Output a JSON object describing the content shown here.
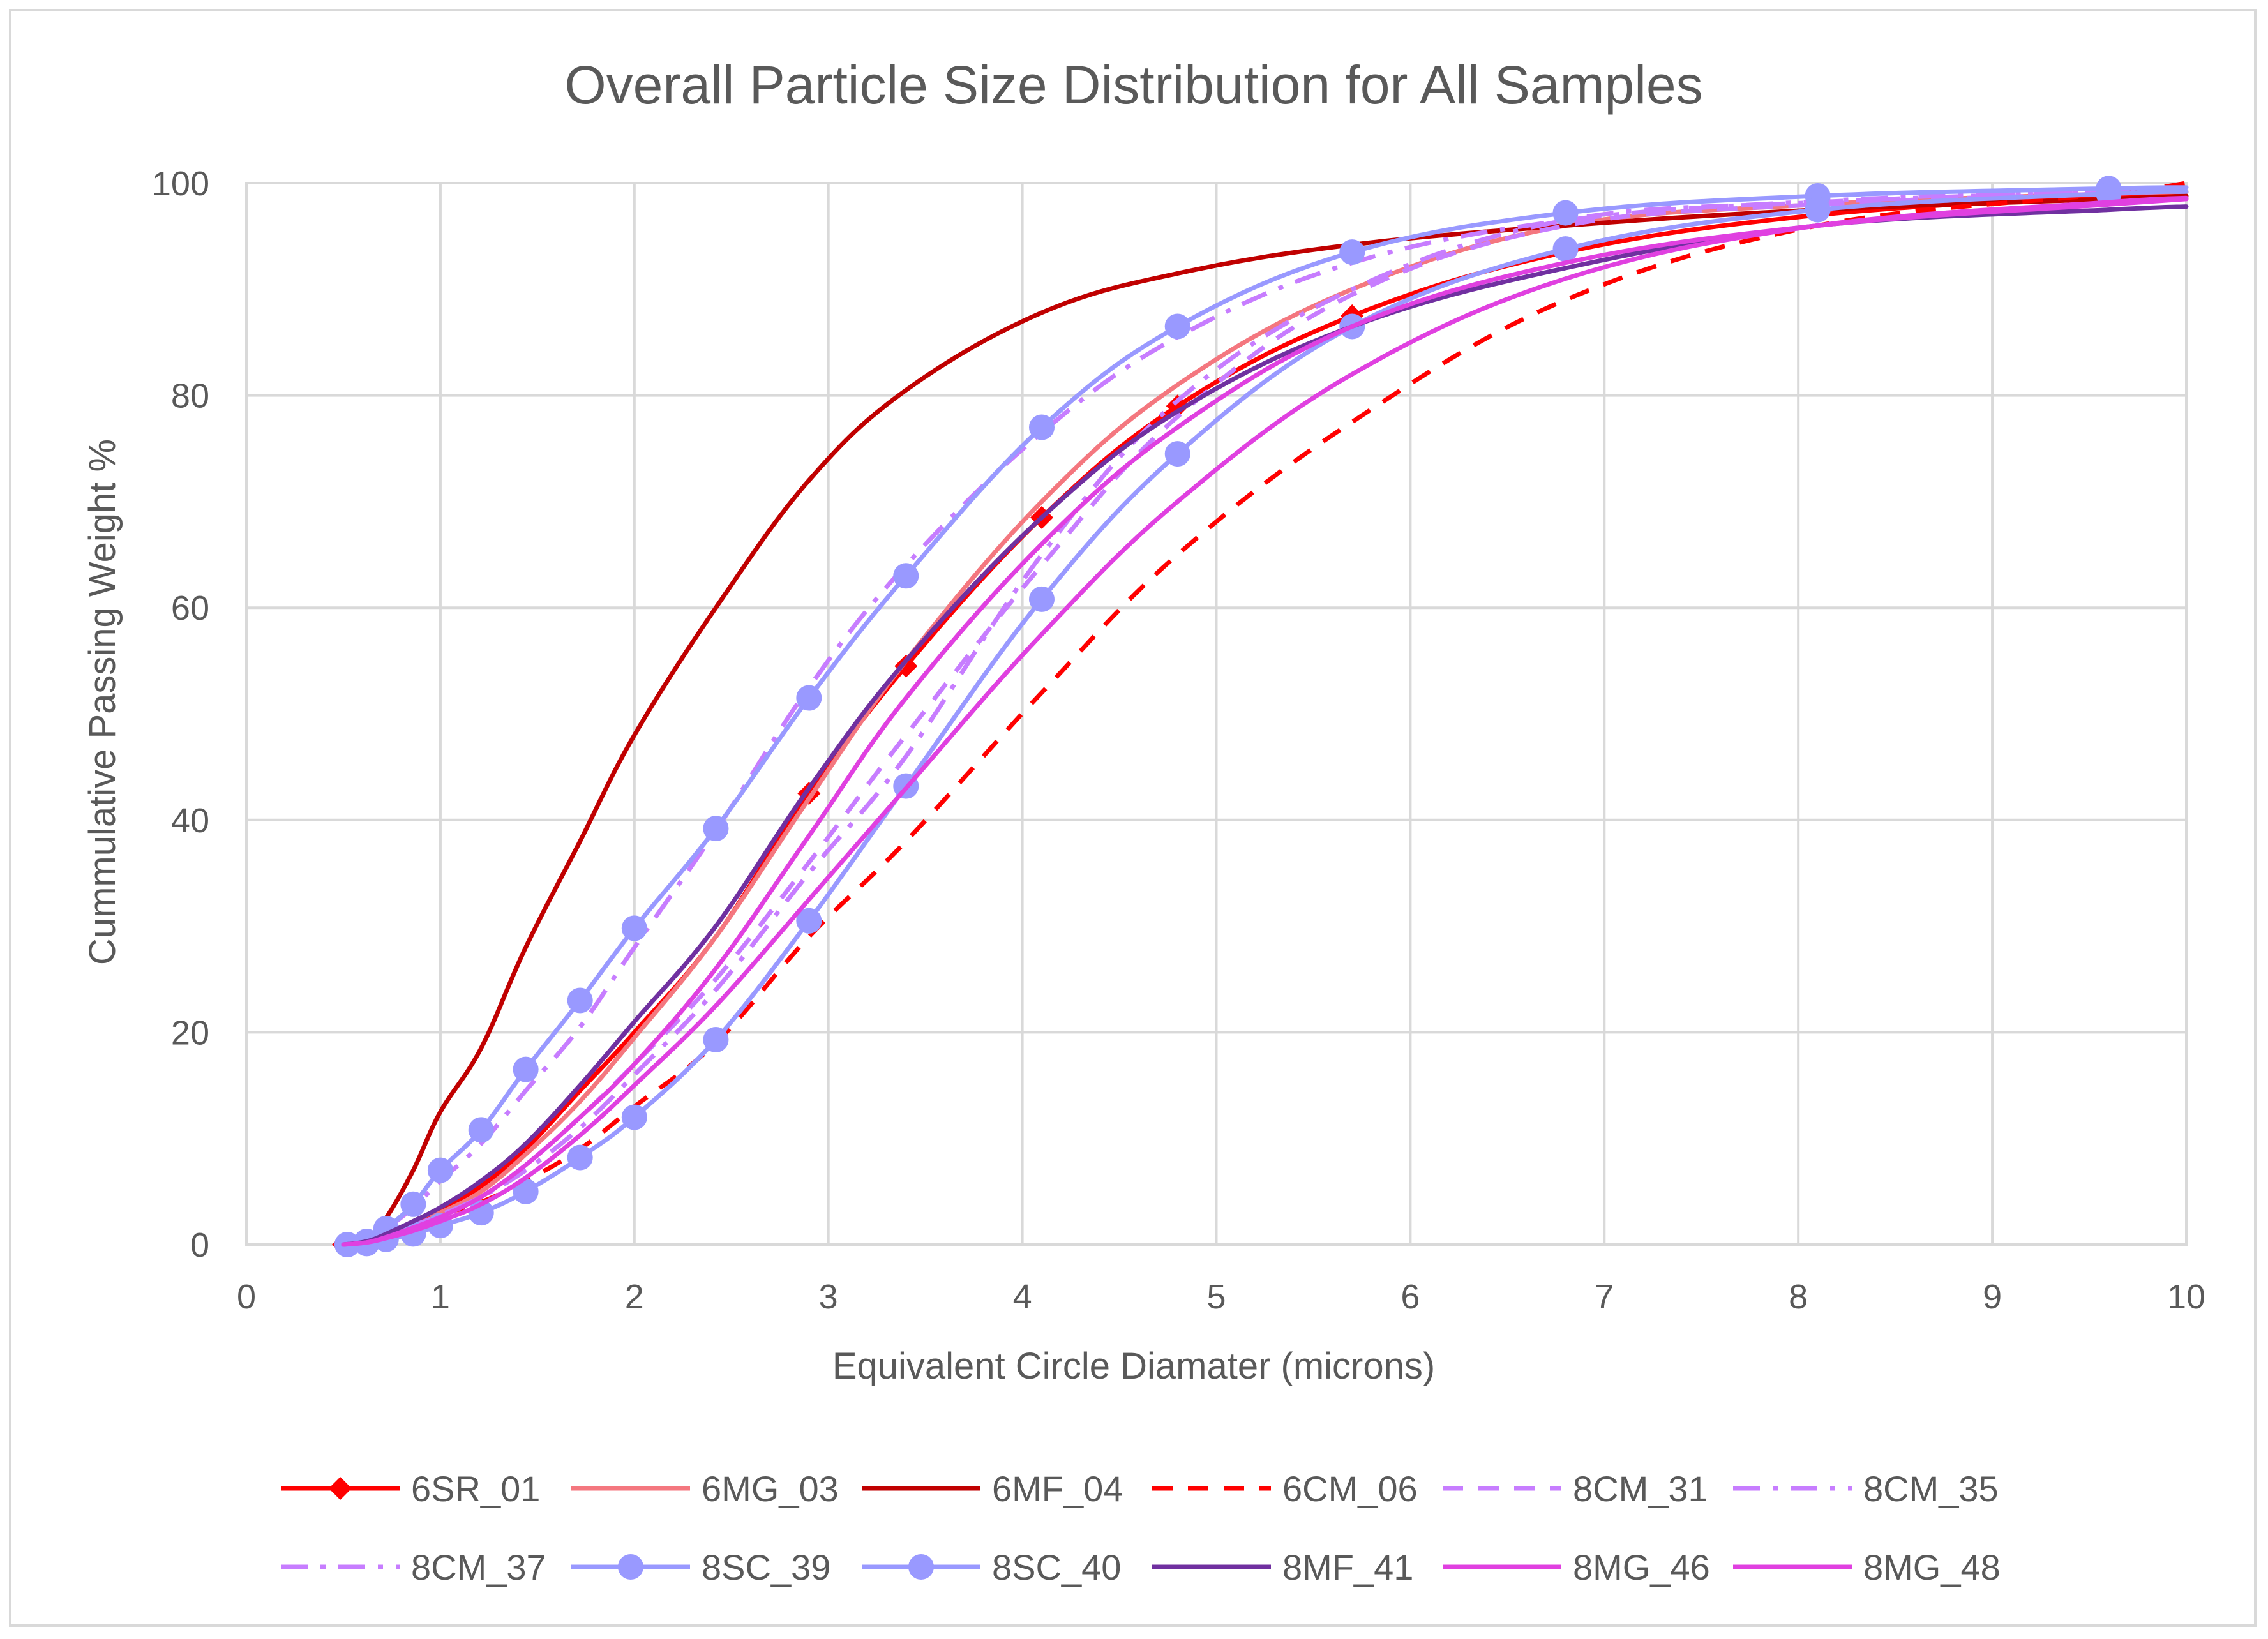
{
  "chart_data": {
    "type": "line",
    "title": "Overall Particle Size Distribution for All Samples",
    "xlabel": "Equivalent Circle Diamater (microns)",
    "ylabel": "Cummulative Passing Weight %",
    "xlim": [
      0,
      10
    ],
    "ylim": [
      0,
      100
    ],
    "xticks": [
      "0",
      "1",
      "2",
      "3",
      "4",
      "5",
      "6",
      "7",
      "8",
      "9",
      "10"
    ],
    "yticks": [
      "0",
      "20",
      "40",
      "60",
      "80",
      "100"
    ],
    "grid": true,
    "legend_position": "bottom",
    "series": [
      {
        "name": "6SR_01",
        "color": "#ff0000",
        "dash": "solid",
        "marker": "diamond",
        "marked": [
          0.5,
          2.9,
          3.4,
          4.1,
          4.8,
          5.7
        ],
        "x": [
          0.5,
          0.62,
          0.72,
          0.86,
          1.0,
          1.21,
          1.44,
          1.72,
          2.0,
          2.42,
          2.9,
          3.4,
          4.1,
          4.8,
          5.7,
          6.8,
          8.1,
          9.6,
          10.0
        ],
        "y": [
          0,
          0.3,
          1.0,
          2.0,
          3.2,
          5.5,
          9.0,
          14.5,
          20.0,
          29.0,
          42.5,
          54.5,
          68.5,
          79.0,
          87.5,
          93.5,
          97.0,
          98.8,
          99.2
        ]
      },
      {
        "name": "6MG_03",
        "color": "#f4777f",
        "dash": "solid",
        "marker": "none",
        "x": [
          0.5,
          0.62,
          0.72,
          0.86,
          1.0,
          1.21,
          1.44,
          1.72,
          2.0,
          2.42,
          2.9,
          3.4,
          4.1,
          4.8,
          5.7,
          6.8,
          8.1,
          9.6,
          10.0
        ],
        "y": [
          0,
          0.3,
          1.0,
          2.0,
          3.0,
          5.0,
          8.5,
          13.5,
          19.5,
          29.0,
          42.0,
          55.0,
          70.0,
          81.0,
          90.0,
          96.0,
          98.0,
          99.0,
          99.2
        ]
      },
      {
        "name": "6MF_04",
        "color": "#c00000",
        "dash": "solid",
        "marker": "none",
        "x": [
          0.5,
          0.62,
          0.72,
          0.86,
          1.0,
          1.21,
          1.44,
          1.72,
          2.0,
          2.42,
          2.9,
          3.4,
          4.1,
          4.8,
          5.7,
          6.8,
          8.1,
          9.6,
          10.0
        ],
        "y": [
          0,
          0.5,
          2.5,
          7.0,
          12.5,
          18.5,
          28.0,
          38.0,
          48.0,
          60.0,
          72.0,
          80.5,
          87.8,
          91.5,
          94.2,
          96.0,
          97.5,
          98.5,
          98.8
        ]
      },
      {
        "name": "6CM_06",
        "color": "#ff0000",
        "dash": "dash",
        "marker": "none",
        "x": [
          0.5,
          0.62,
          0.72,
          0.86,
          1.0,
          1.21,
          1.44,
          1.72,
          2.0,
          2.42,
          2.9,
          3.4,
          4.1,
          4.8,
          5.7,
          6.8,
          8.1,
          9.6,
          10.0
        ],
        "y": [
          0,
          0.2,
          0.8,
          1.8,
          2.8,
          4.0,
          6.0,
          9.0,
          13.0,
          19.0,
          29.0,
          38.0,
          52.0,
          65.0,
          77.5,
          89.0,
          96.0,
          99.0,
          100.0
        ]
      },
      {
        "name": "8CM_31",
        "color": "#c77dff",
        "dash": "dash",
        "marker": "none",
        "x": [
          0.5,
          0.62,
          0.72,
          0.86,
          1.0,
          1.21,
          1.44,
          1.72,
          2.0,
          2.42,
          2.9,
          3.4,
          4.1,
          4.8,
          5.7,
          6.8,
          8.1,
          9.6,
          10.0
        ],
        "y": [
          0,
          0.2,
          0.8,
          1.8,
          2.8,
          4.5,
          7.5,
          12.0,
          17.0,
          25.0,
          36.0,
          48.0,
          64.0,
          78.0,
          89.5,
          96.0,
          98.0,
          99.0,
          99.3
        ]
      },
      {
        "name": "8CM_35",
        "color": "#c77dff",
        "dash": "dashdot",
        "marker": "none",
        "x": [
          0.5,
          0.62,
          0.72,
          0.86,
          1.0,
          1.21,
          1.44,
          1.72,
          2.0,
          2.42,
          2.9,
          3.4,
          4.1,
          4.8,
          5.7,
          6.8,
          8.1,
          9.6,
          10.0
        ],
        "y": [
          0,
          0.2,
          0.8,
          1.8,
          2.8,
          4.5,
          7.0,
          11.0,
          16.0,
          24.0,
          35.0,
          46.0,
          65.0,
          79.5,
          90.0,
          96.5,
          98.2,
          99.2,
          99.4
        ]
      },
      {
        "name": "8CM_37",
        "color": "#c77dff",
        "dash": "dashdot",
        "marker": "none",
        "x": [
          0.5,
          0.62,
          0.72,
          0.86,
          1.0,
          1.21,
          1.44,
          1.72,
          2.0,
          2.42,
          2.9,
          3.4,
          4.1,
          4.8,
          5.7,
          6.8,
          8.1,
          9.6,
          10.0
        ],
        "y": [
          0,
          0.5,
          1.5,
          3.5,
          6.0,
          9.5,
          14.5,
          20.5,
          28.0,
          39.0,
          52.5,
          64.0,
          76.5,
          85.5,
          92.5,
          96.5,
          98.3,
          99.3,
          99.5
        ]
      },
      {
        "name": "8SC_39",
        "color": "#9999ff",
        "dash": "solid",
        "marker": "circle",
        "marked": [
          0.52,
          0.62,
          0.72,
          0.86,
          1.0,
          1.21,
          1.44,
          1.72,
          2.0,
          2.42,
          2.9,
          3.4,
          4.1,
          4.8,
          5.7,
          6.8,
          8.1,
          9.6
        ],
        "x": [
          0.52,
          0.62,
          0.72,
          0.86,
          1.0,
          1.21,
          1.44,
          1.72,
          2.0,
          2.42,
          2.9,
          3.4,
          4.1,
          4.8,
          5.7,
          6.8,
          8.1,
          9.6,
          10.0
        ],
        "y": [
          0,
          0.3,
          1.5,
          3.8,
          7.0,
          10.8,
          16.5,
          23.0,
          29.8,
          39.2,
          51.5,
          63.0,
          77.0,
          86.5,
          93.5,
          97.2,
          98.8,
          99.5,
          99.6
        ]
      },
      {
        "name": "8SC_40",
        "color": "#9999ff",
        "dash": "solid",
        "marker": "circle",
        "marked": [
          0.52,
          0.62,
          0.72,
          0.86,
          1.0,
          1.21,
          1.44,
          1.72,
          2.0,
          2.42,
          2.9,
          3.4,
          4.1,
          4.8,
          5.7,
          6.8,
          8.1,
          9.6
        ],
        "x": [
          0.52,
          0.62,
          0.72,
          0.86,
          1.0,
          1.21,
          1.44,
          1.72,
          2.0,
          2.42,
          2.9,
          3.4,
          4.1,
          4.8,
          5.7,
          6.8,
          8.1,
          9.6,
          10.0
        ],
        "y": [
          0,
          0.1,
          0.5,
          1.0,
          1.8,
          3.0,
          5.0,
          8.2,
          12.0,
          19.3,
          30.5,
          43.2,
          60.8,
          74.5,
          86.5,
          93.8,
          97.5,
          99.0,
          99.2
        ]
      },
      {
        "name": "8MF_41",
        "color": "#7030a0",
        "dash": "solid",
        "marker": "none",
        "x": [
          0.5,
          0.62,
          0.72,
          0.86,
          1.0,
          1.21,
          1.44,
          1.72,
          2.0,
          2.42,
          2.9,
          3.4,
          4.1,
          4.8,
          5.7,
          6.8,
          8.1,
          9.6,
          10.0
        ],
        "y": [
          0,
          0.3,
          1.0,
          2.2,
          3.5,
          6.0,
          9.5,
          15.0,
          21.0,
          30.0,
          43.0,
          55.0,
          68.5,
          78.5,
          86.5,
          92.0,
          96.0,
          97.5,
          97.8
        ]
      },
      {
        "name": "8MG_46",
        "color": "#e040e0",
        "dash": "solid",
        "marker": "none",
        "x": [
          0.5,
          0.62,
          0.72,
          0.86,
          1.0,
          1.21,
          1.44,
          1.72,
          2.0,
          2.42,
          2.9,
          3.4,
          4.1,
          4.8,
          5.7,
          6.8,
          8.1,
          9.6,
          10.0
        ],
        "y": [
          0,
          0.2,
          0.7,
          1.6,
          2.6,
          4.5,
          7.5,
          12.0,
          17.0,
          26.0,
          38.5,
          51.5,
          66.0,
          77.0,
          86.5,
          92.5,
          96.0,
          98.0,
          98.5
        ]
      },
      {
        "name": "8MG_48",
        "color": "#e040e0",
        "dash": "solid",
        "marker": "none",
        "x": [
          0.5,
          0.62,
          0.72,
          0.86,
          1.0,
          1.21,
          1.44,
          1.72,
          2.0,
          2.42,
          2.9,
          3.4,
          4.1,
          4.8,
          5.7,
          6.8,
          8.1,
          9.6,
          10.0
        ],
        "y": [
          0,
          0.2,
          0.6,
          1.3,
          2.2,
          3.8,
          6.3,
          10.3,
          15.0,
          22.5,
          32.5,
          43.0,
          57.5,
          70.0,
          82.0,
          91.0,
          96.0,
          98.2,
          98.6
        ]
      }
    ]
  }
}
